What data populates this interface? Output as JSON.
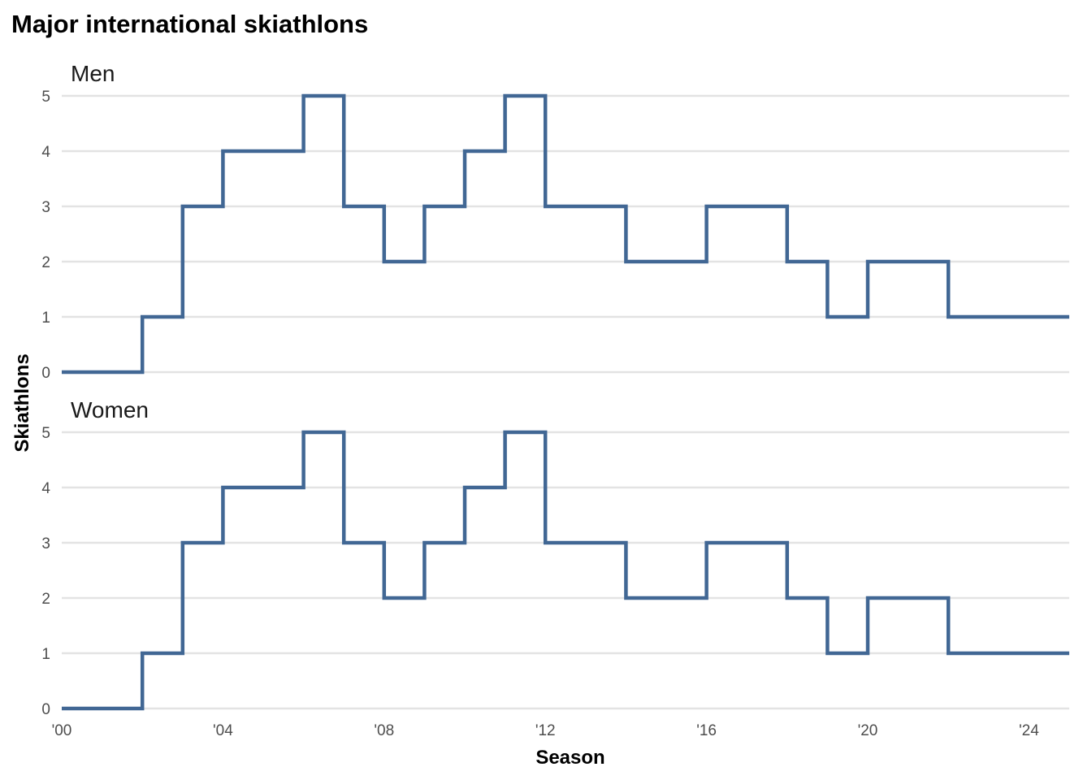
{
  "chart_data": {
    "type": "line",
    "style": "step",
    "title": "Major international skiathlons",
    "xlabel": "Season",
    "ylabel": "Skiathlons",
    "xlim": [
      2000,
      2025
    ],
    "ylim": [
      0,
      5
    ],
    "x_ticks": [
      {
        "value": 2000,
        "label": "'00"
      },
      {
        "value": 2004,
        "label": "'04"
      },
      {
        "value": 2008,
        "label": "'08"
      },
      {
        "value": 2012,
        "label": "'12"
      },
      {
        "value": 2016,
        "label": "'16"
      },
      {
        "value": 2020,
        "label": "'20"
      },
      {
        "value": 2024,
        "label": "'24"
      }
    ],
    "y_ticks": [
      0,
      1,
      2,
      3,
      4,
      5
    ],
    "grid": "horizontal",
    "color": "#416794",
    "panels": [
      {
        "label": "Men",
        "x": [
          2000,
          2001,
          2002,
          2003,
          2004,
          2005,
          2006,
          2007,
          2008,
          2009,
          2010,
          2011,
          2012,
          2013,
          2014,
          2015,
          2016,
          2017,
          2018,
          2019,
          2020,
          2021,
          2022,
          2023,
          2024,
          2025
        ],
        "y": [
          0,
          0,
          1,
          3,
          4,
          4,
          5,
          3,
          2,
          3,
          4,
          5,
          3,
          3,
          2,
          2,
          3,
          3,
          2,
          1,
          2,
          2,
          1,
          1,
          1,
          1
        ]
      },
      {
        "label": "Women",
        "x": [
          2000,
          2001,
          2002,
          2003,
          2004,
          2005,
          2006,
          2007,
          2008,
          2009,
          2010,
          2011,
          2012,
          2013,
          2014,
          2015,
          2016,
          2017,
          2018,
          2019,
          2020,
          2021,
          2022,
          2023,
          2024,
          2025
        ],
        "y": [
          0,
          0,
          1,
          3,
          4,
          4,
          5,
          3,
          2,
          3,
          4,
          5,
          3,
          3,
          2,
          2,
          3,
          3,
          2,
          1,
          2,
          2,
          1,
          1,
          1,
          1
        ]
      }
    ]
  }
}
